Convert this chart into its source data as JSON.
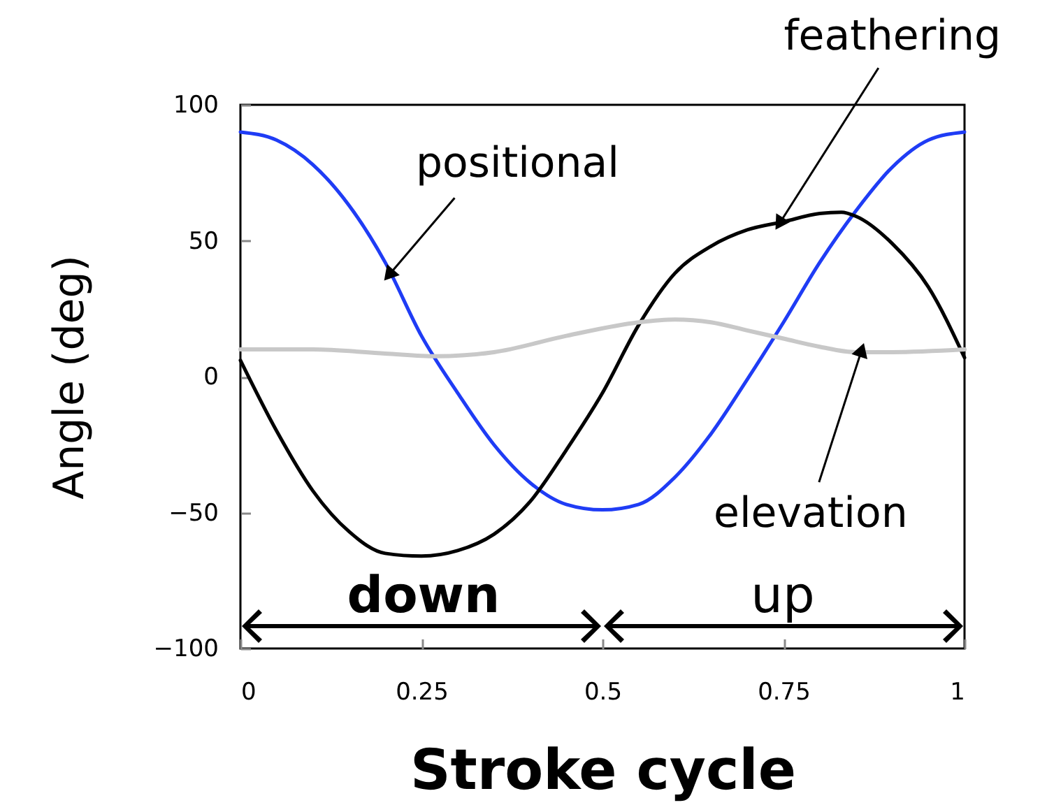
{
  "chart_data": {
    "type": "line",
    "xlabel": "Stroke cycle",
    "ylabel": "Angle (deg)",
    "xlim": [
      0,
      1
    ],
    "ylim": [
      -100,
      100
    ],
    "xticks": [
      0,
      0.25,
      0.5,
      0.75,
      1
    ],
    "yticks": [
      {
        "value": -100,
        "label": "−100"
      },
      {
        "value": -50,
        "label": "−50"
      },
      0,
      50,
      100
    ],
    "grid": false,
    "legend": false,
    "series": [
      {
        "color": "#1f3cf5",
        "x": [
          0,
          0.05,
          0.1,
          0.15,
          0.2,
          0.25,
          0.3,
          0.35,
          0.4,
          0.45,
          0.5,
          0.55,
          0.6,
          0.65,
          0.7,
          0.75,
          0.8,
          0.85,
          0.9,
          0.95,
          1
        ],
        "values": [
          90,
          87,
          78,
          63,
          42,
          15,
          -6,
          -25,
          -39,
          -47,
          -49,
          -47,
          -37,
          -21,
          -1,
          20,
          42,
          61,
          77,
          87,
          90
        ]
      },
      {
        "color": "#000000",
        "x": [
          0,
          0.05,
          0.1,
          0.15,
          0.2,
          0.25,
          0.3,
          0.35,
          0.4,
          0.45,
          0.5,
          0.55,
          0.6,
          0.65,
          0.7,
          0.75,
          0.8,
          0.83,
          0.85,
          0.9,
          0.95,
          1
        ],
        "values": [
          6,
          -20,
          -42,
          -57,
          -65,
          -66,
          -64,
          -58,
          -46,
          -27,
          -6,
          19,
          38,
          48,
          54,
          57,
          60,
          60.5,
          59,
          49,
          33,
          7
        ]
      },
      {
        "color": "#c8c8c8",
        "x": [
          0,
          0.1,
          0.2,
          0.27,
          0.35,
          0.45,
          0.55,
          0.6,
          0.65,
          0.7,
          0.75,
          0.8,
          0.85,
          0.9,
          1
        ],
        "values": [
          10,
          10,
          8.5,
          7.5,
          9,
          15,
          20,
          21,
          20,
          17,
          14,
          11,
          9,
          9,
          10
        ]
      }
    ],
    "annotations": [
      {
        "text": "positional",
        "x": 0.207,
        "y": 38
      },
      {
        "text": "feathering",
        "x": 0.746,
        "y": 57
      },
      {
        "text": "elevation",
        "x": 0.857,
        "y": 9
      },
      "down",
      "up"
    ]
  }
}
